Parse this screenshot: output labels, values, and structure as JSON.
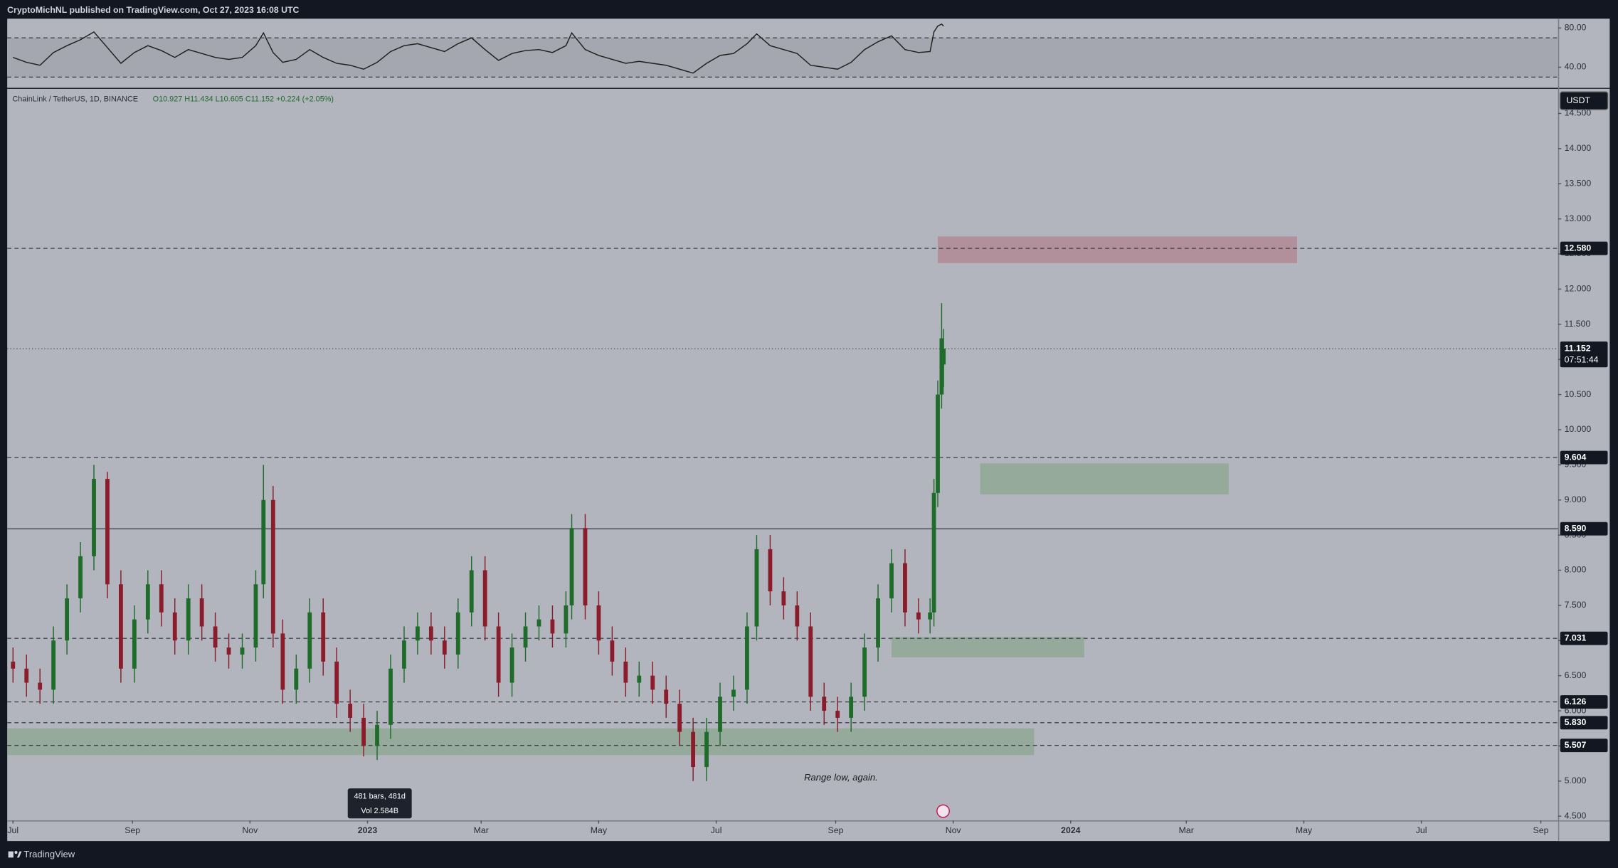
{
  "header": "CryptoMichNL published on TradingView.com, Oct 27, 2023 16:08 UTC",
  "footer": "TradingView",
  "chart_data": [
    {
      "type": "candlestick",
      "title": "ChainLink / TetherUS, 1D, BINANCE",
      "ohlc_text": "O10.927 H11.434 L10.605 C11.152 +0.224 (+2.05%)",
      "currency": "USDT",
      "up_color": "#1e6b2a",
      "down_color": "#8a1c2b",
      "x": [
        0,
        7,
        14,
        21,
        28,
        35,
        42,
        49,
        56,
        63,
        70,
        77,
        84,
        91,
        98,
        105,
        112,
        119,
        126,
        130,
        135,
        140,
        147,
        154,
        161,
        168,
        175,
        182,
        189,
        196,
        203,
        210,
        217,
        224,
        231,
        238,
        245,
        252,
        259,
        266,
        273,
        280,
        287,
        290,
        297,
        304,
        311,
        318,
        325,
        332,
        339,
        346,
        353,
        360,
        367,
        374,
        381,
        386,
        393,
        400,
        407,
        414,
        421,
        428,
        435,
        442,
        449,
        456,
        463,
        470,
        476,
        478,
        480,
        482,
        483
      ],
      "open": [
        6.7,
        6.6,
        6.4,
        6.3,
        7.0,
        7.6,
        8.2,
        9.3,
        7.8,
        6.6,
        7.3,
        7.8,
        7.4,
        7.0,
        7.6,
        7.2,
        6.9,
        6.8,
        6.9,
        7.8,
        9.0,
        7.1,
        6.3,
        6.6,
        7.4,
        6.7,
        6.1,
        5.9,
        5.5,
        5.8,
        6.6,
        7.0,
        7.2,
        7.0,
        6.8,
        7.4,
        8.0,
        7.2,
        6.4,
        6.9,
        7.2,
        7.3,
        7.1,
        7.5,
        8.6,
        7.5,
        7.0,
        6.7,
        6.4,
        6.5,
        6.3,
        6.1,
        5.7,
        5.2,
        5.7,
        6.2,
        6.3,
        7.2,
        8.3,
        7.7,
        7.5,
        7.2,
        6.2,
        6.0,
        5.9,
        6.2,
        6.9,
        7.6,
        8.1,
        7.4,
        7.3,
        7.4,
        9.1,
        10.5,
        10.927
      ],
      "high": [
        6.9,
        6.8,
        6.6,
        7.2,
        7.8,
        8.4,
        9.5,
        9.4,
        8.0,
        7.5,
        8.0,
        8.0,
        7.6,
        7.8,
        7.8,
        7.4,
        7.1,
        7.1,
        8.0,
        9.5,
        9.2,
        7.3,
        6.8,
        7.6,
        7.6,
        6.9,
        6.3,
        6.1,
        6.0,
        6.8,
        7.2,
        7.4,
        7.4,
        7.2,
        7.6,
        8.2,
        8.2,
        7.4,
        7.1,
        7.4,
        7.5,
        7.5,
        7.7,
        8.8,
        8.8,
        7.7,
        7.2,
        6.9,
        6.7,
        6.7,
        6.5,
        6.3,
        5.9,
        5.9,
        6.4,
        6.5,
        7.4,
        8.5,
        8.5,
        7.9,
        7.7,
        7.4,
        6.4,
        6.2,
        6.4,
        7.1,
        7.8,
        8.3,
        8.3,
        7.6,
        7.6,
        9.3,
        10.7,
        11.8,
        11.434
      ],
      "low": [
        6.4,
        6.2,
        6.1,
        6.1,
        6.8,
        7.4,
        8.0,
        7.6,
        6.4,
        6.4,
        7.1,
        7.2,
        6.8,
        6.8,
        7.0,
        6.7,
        6.6,
        6.6,
        6.7,
        7.6,
        6.9,
        6.1,
        6.1,
        6.4,
        6.5,
        5.9,
        5.7,
        5.35,
        5.3,
        5.6,
        6.4,
        6.8,
        6.8,
        6.6,
        6.6,
        7.2,
        7.0,
        6.2,
        6.2,
        6.7,
        7.0,
        6.9,
        6.9,
        7.3,
        7.3,
        6.8,
        6.5,
        6.2,
        6.2,
        6.1,
        5.9,
        5.5,
        5.0,
        5.0,
        5.5,
        6.0,
        6.1,
        7.0,
        7.5,
        7.3,
        7.0,
        6.0,
        5.8,
        5.7,
        5.7,
        6.0,
        6.7,
        7.4,
        7.2,
        7.1,
        7.1,
        7.2,
        8.9,
        10.3,
        10.605
      ],
      "close": [
        6.6,
        6.4,
        6.3,
        7.0,
        7.6,
        8.2,
        9.3,
        7.8,
        6.6,
        7.3,
        7.8,
        7.4,
        7.0,
        7.6,
        7.2,
        6.9,
        6.8,
        6.9,
        7.8,
        9.0,
        7.1,
        6.3,
        6.6,
        7.4,
        6.7,
        6.1,
        5.9,
        5.5,
        5.8,
        6.6,
        7.0,
        7.2,
        7.0,
        6.8,
        7.4,
        8.0,
        7.2,
        6.4,
        6.9,
        7.2,
        7.3,
        7.1,
        7.5,
        8.6,
        7.5,
        7.0,
        6.7,
        6.4,
        6.5,
        6.3,
        6.1,
        5.7,
        5.2,
        5.7,
        6.2,
        6.3,
        7.2,
        8.3,
        7.7,
        7.5,
        7.2,
        6.2,
        6.0,
        5.9,
        6.2,
        6.9,
        7.6,
        8.1,
        7.4,
        7.3,
        7.4,
        9.1,
        10.5,
        11.3,
        11.152
      ],
      "xlim": [
        -3,
        802
      ],
      "xticks": [
        {
          "value": 0,
          "label": "Jul"
        },
        {
          "value": 62,
          "label": "Sep"
        },
        {
          "value": 123,
          "label": "Nov"
        },
        {
          "value": 184,
          "label": "2023"
        },
        {
          "value": 243,
          "label": "Mar"
        },
        {
          "value": 304,
          "label": "May"
        },
        {
          "value": 365,
          "label": "Jul"
        },
        {
          "value": 427,
          "label": "Sep"
        },
        {
          "value": 488,
          "label": "Nov"
        },
        {
          "value": 549,
          "label": "2024"
        },
        {
          "value": 609,
          "label": "Mar"
        },
        {
          "value": 670,
          "label": "May"
        },
        {
          "value": 731,
          "label": "Jul"
        },
        {
          "value": 793,
          "label": "Sep"
        }
      ],
      "ylim": [
        4.44,
        14.85
      ],
      "yticks": [
        {
          "value": 4.5,
          "label": "4.500"
        },
        {
          "value": 5,
          "label": "5.000"
        },
        {
          "value": 5.5,
          "label": "5.500"
        },
        {
          "value": 6,
          "label": "6.000"
        },
        {
          "value": 6.5,
          "label": "6.500"
        },
        {
          "value": 7,
          "label": "7.000"
        },
        {
          "value": 7.5,
          "label": "7.500"
        },
        {
          "value": 8,
          "label": "8.000"
        },
        {
          "value": 8.5,
          "label": "8.500"
        },
        {
          "value": 9,
          "label": "9.000"
        },
        {
          "value": 9.5,
          "label": "9.500"
        },
        {
          "value": 10,
          "label": "10.000"
        },
        {
          "value": 10.5,
          "label": "10.500"
        },
        {
          "value": 11,
          "label": "11.000"
        },
        {
          "value": 11.5,
          "label": "11.500"
        },
        {
          "value": 12,
          "label": "12.000"
        },
        {
          "value": 12.5,
          "label": "12.500"
        },
        {
          "value": 13,
          "label": "13.000"
        },
        {
          "value": 13.5,
          "label": "13.500"
        },
        {
          "value": 14,
          "label": "14.000"
        },
        {
          "value": 14.5,
          "label": "14.500"
        }
      ],
      "levels": [
        {
          "value": 12.58,
          "label": "12.580",
          "style": "dashed"
        },
        {
          "value": 9.604,
          "label": "9.604",
          "style": "dashed"
        },
        {
          "value": 8.59,
          "label": "8.590",
          "style": "solid"
        },
        {
          "value": 7.031,
          "label": "7.031",
          "style": "dashed"
        },
        {
          "value": 6.126,
          "label": "6.126",
          "style": "dashed"
        },
        {
          "value": 5.83,
          "label": "5.830",
          "style": "dashed"
        },
        {
          "value": 5.507,
          "label": "5.507",
          "style": "dashed"
        }
      ],
      "last_price": {
        "value": 11.152,
        "label": "11.152"
      },
      "countdown": "07:51:44",
      "zones": [
        {
          "x": [
            480,
            666.5
          ],
          "y": [
            12.37,
            12.75
          ],
          "color": "#b08a95"
        },
        {
          "x": [
            502,
            631
          ],
          "y": [
            9.08,
            9.52
          ],
          "color": "#8fa894"
        },
        {
          "x": [
            456,
            556
          ],
          "y": [
            6.76,
            7.05
          ],
          "color": "#8fa894"
        },
        {
          "x": [
            -3,
            530
          ],
          "y": [
            5.37,
            5.75
          ],
          "color": "#8fa894"
        }
      ],
      "annotation": "Range low, again.",
      "tooltip": [
        "481 bars, 481d",
        "Vol 2.584B"
      ]
    },
    {
      "type": "line",
      "name": "RSI",
      "color": "#1f1f1f",
      "x": [
        0,
        7,
        14,
        21,
        28,
        35,
        42,
        49,
        56,
        63,
        70,
        77,
        84,
        91,
        98,
        105,
        112,
        119,
        126,
        130,
        135,
        140,
        147,
        154,
        161,
        168,
        175,
        182,
        189,
        196,
        203,
        210,
        217,
        224,
        231,
        238,
        245,
        252,
        259,
        266,
        273,
        280,
        287,
        290,
        297,
        304,
        311,
        318,
        325,
        332,
        339,
        346,
        353,
        360,
        367,
        374,
        381,
        386,
        393,
        400,
        407,
        414,
        421,
        428,
        435,
        442,
        449,
        456,
        463,
        470,
        476,
        478,
        480,
        482,
        483
      ],
      "values": [
        50,
        45,
        42,
        55,
        62,
        68,
        76,
        60,
        44,
        55,
        62,
        57,
        50,
        58,
        54,
        50,
        48,
        50,
        62,
        75,
        55,
        45,
        48,
        58,
        50,
        44,
        42,
        38,
        45,
        56,
        62,
        64,
        60,
        56,
        64,
        70,
        58,
        47,
        54,
        57,
        58,
        55,
        62,
        75,
        58,
        52,
        48,
        44,
        46,
        44,
        42,
        38,
        34,
        44,
        52,
        54,
        64,
        74,
        62,
        58,
        54,
        42,
        40,
        38,
        45,
        58,
        66,
        72,
        58,
        55,
        56,
        76,
        82,
        84,
        82
      ],
      "xlim": [
        -3,
        802
      ],
      "ylim": [
        19,
        89.5
      ],
      "yticks": [
        {
          "value": 80,
          "label": "80.00"
        },
        {
          "value": 40,
          "label": "40.00"
        }
      ],
      "band": [
        30,
        70
      ]
    }
  ]
}
